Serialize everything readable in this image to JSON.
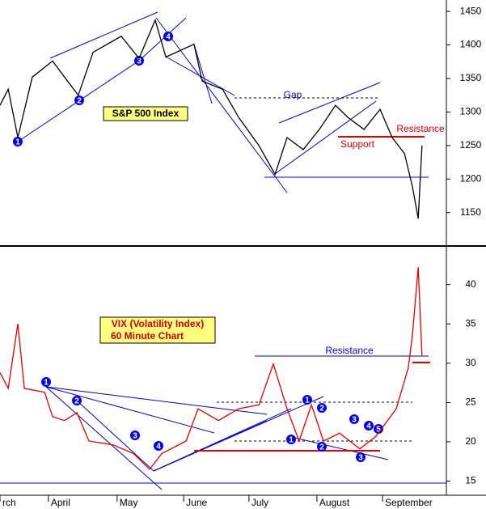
{
  "chart_data": [
    {
      "type": "line",
      "title": "S&P 500 Index",
      "color": "#000000",
      "annotations": [
        "Gap",
        "Resistance",
        "Support"
      ],
      "markers": [
        "1",
        "2",
        "3",
        "4"
      ],
      "x": [
        0,
        2.4,
        5.2,
        9.4,
        15.3,
        18.8,
        22.8,
        27.1,
        35.3,
        40.5,
        45.2,
        48.3,
        56.5,
        58.9,
        64.8,
        69.5,
        75.4,
        80.1,
        83.6,
        88.3,
        93,
        97.7,
        101.3,
        106,
        110.7,
        114.2,
        117.8,
        120.1,
        121.8,
        122.9
      ],
      "values": [
        1310,
        1334,
        1262,
        1352,
        1376,
        1352,
        1325,
        1389,
        1413,
        1380,
        1437,
        1382,
        1401,
        1346,
        1334,
        1292,
        1250,
        1207,
        1262,
        1244,
        1274,
        1310,
        1292,
        1274,
        1304,
        1262,
        1238,
        1189,
        1141,
        1250
      ],
      "xlim": [
        0,
        130
      ],
      "ylim": [
        1105,
        1467
      ],
      "yticks": [
        1150,
        1200,
        1250,
        1300,
        1350,
        1400,
        1450
      ]
    },
    {
      "type": "line",
      "title": "VIX (Volatility Index)",
      "subtitle": "60 Minute Chart",
      "color": "#dd0000",
      "annotations": [
        "Resistance"
      ],
      "markers": [
        "1",
        "2",
        "3",
        "4",
        "1",
        "2",
        "1",
        "2",
        "3",
        "4",
        "5",
        "3"
      ],
      "x": [
        0,
        2.4,
        5.2,
        7.1,
        13,
        15.3,
        18.8,
        22.4,
        25.9,
        33,
        38.9,
        43.6,
        47.1,
        54.2,
        57.7,
        63.6,
        69.5,
        75.4,
        79.6,
        83.6,
        87.1,
        90.7,
        94.2,
        98.9,
        104.8,
        109.5,
        115.4,
        118.9,
        120.1,
        121.8,
        122.9
      ],
      "values": [
        28.8,
        26.8,
        35.0,
        26.8,
        26.3,
        23.2,
        22.7,
        23.7,
        20.1,
        19.6,
        18.5,
        16.5,
        18.5,
        20.1,
        24.2,
        22.7,
        24.2,
        24.7,
        29.9,
        24.2,
        20.1,
        24.7,
        20.1,
        21.1,
        19.1,
        20.7,
        24.2,
        29.4,
        33.5,
        42.2,
        30.9
      ],
      "xlim": [
        0,
        130
      ],
      "ylim": [
        13.2,
        44.6
      ],
      "yticks": [
        15,
        20,
        25,
        30,
        35,
        40
      ],
      "xticks": [
        {
          "value": 0,
          "label": "rch"
        },
        {
          "value": 14.1,
          "label": "April"
        },
        {
          "value": 34.1,
          "label": "May"
        },
        {
          "value": 53.5,
          "label": "June"
        },
        {
          "value": 72.5,
          "label": "July"
        },
        {
          "value": 92.3,
          "label": "August"
        },
        {
          "value": 111.4,
          "label": "September"
        }
      ]
    }
  ]
}
